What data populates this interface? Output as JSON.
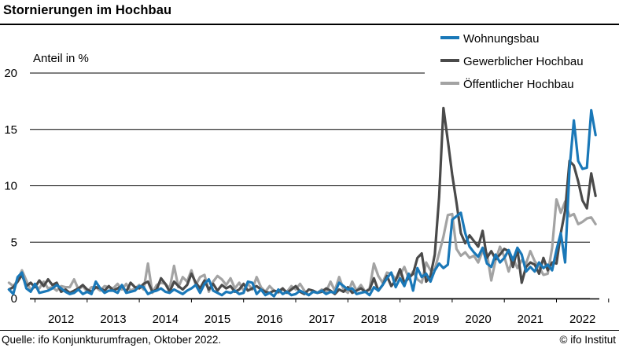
{
  "title": "Stornierungen im Hochbau",
  "footer": {
    "source": "Quelle: ifo Konjunkturumfragen, Oktober 2022.",
    "credit": "© ifo Institut"
  },
  "chart_data": {
    "type": "line",
    "title": "Stornierungen im Hochbau",
    "ylabel": "Anteil in %",
    "ylim": [
      0,
      20
    ],
    "yticks": [
      0,
      5,
      10,
      15,
      20
    ],
    "grid": "horizontal",
    "legend_position": "top-right",
    "x_start": "2011-07",
    "x_end": "2022-09",
    "x_frequency": "monthly",
    "xticks": [
      "2012",
      "2013",
      "2014",
      "2015",
      "2016",
      "2017",
      "2018",
      "2019",
      "2020",
      "2021",
      "2022"
    ],
    "series": [
      {
        "name": "Wohnungsbau",
        "color": "#1a78b8",
        "values": [
          0.8,
          0.4,
          1.9,
          2.3,
          0.9,
          0.6,
          1.3,
          0.5,
          0.6,
          0.7,
          0.9,
          1.2,
          0.9,
          0.6,
          0.4,
          0.5,
          0.8,
          0.4,
          0.6,
          0.4,
          1.5,
          0.9,
          0.5,
          0.7,
          0.7,
          0.5,
          1.2,
          0.5,
          0.6,
          0.7,
          1.1,
          1.0,
          0.4,
          0.6,
          0.7,
          0.9,
          0.6,
          0.5,
          0.8,
          0.6,
          0.4,
          0.7,
          0.9,
          1.2,
          0.5,
          1.3,
          1.7,
          0.7,
          0.5,
          0.3,
          0.6,
          0.5,
          0.7,
          0.4,
          0.5,
          1.5,
          1.4,
          0.4,
          0.8,
          0.3,
          0.5,
          0.2,
          0.8,
          0.4,
          0.6,
          0.3,
          0.4,
          0.7,
          0.5,
          0.3,
          0.6,
          0.5,
          0.7,
          0.4,
          0.6,
          0.5,
          1.4,
          1.1,
          0.8,
          0.9,
          0.4,
          0.5,
          0.6,
          0.3,
          1.0,
          0.7,
          1.2,
          1.8,
          2.3,
          1.0,
          1.8,
          1.1,
          2.2,
          0.7,
          2.7,
          1.9,
          2.2,
          1.5,
          2.5,
          3.1,
          2.7,
          3.0,
          7.0,
          7.3,
          7.6,
          5.8,
          4.6,
          4.1,
          3.7,
          4.5,
          3.1,
          2.8,
          3.9,
          3.2,
          3.6,
          4.3,
          3.4,
          4.5,
          3.9,
          2.4,
          2.8,
          2.4,
          3.2,
          2.7,
          3.0,
          2.5,
          4.3,
          5.8,
          3.2,
          11.5,
          15.8,
          12.2,
          11.5,
          11.6,
          16.7,
          14.5
        ]
      },
      {
        "name": "Gewerblicher Hochbau",
        "color": "#4a4a4a",
        "values": [
          0.8,
          1.0,
          1.5,
          2.1,
          1.1,
          1.4,
          1.0,
          1.6,
          1.1,
          1.7,
          1.2,
          1.4,
          0.6,
          0.8,
          0.5,
          0.7,
          0.9,
          1.2,
          0.8,
          0.6,
          1.0,
          0.9,
          0.7,
          1.1,
          0.7,
          0.9,
          1.1,
          0.6,
          1.4,
          1.0,
          0.9,
          1.3,
          1.5,
          0.6,
          0.8,
          1.8,
          1.3,
          0.6,
          1.5,
          1.1,
          0.8,
          1.2,
          2.2,
          1.4,
          0.9,
          1.6,
          0.8,
          1.3,
          0.7,
          1.2,
          0.9,
          1.1,
          0.6,
          0.8,
          1.3,
          0.7,
          0.9,
          1.1,
          0.8,
          0.6,
          0.5,
          0.7,
          0.6,
          0.9,
          0.5,
          0.8,
          1.1,
          0.6,
          0.4,
          0.8,
          0.7,
          0.5,
          0.6,
          0.9,
          0.7,
          0.4,
          0.8,
          0.6,
          1.0,
          0.5,
          0.7,
          0.9,
          0.6,
          0.8,
          1.8,
          0.7,
          1.2,
          2.0,
          1.1,
          1.6,
          2.6,
          1.4,
          1.8,
          2.2,
          3.6,
          4.0,
          1.5,
          2.0,
          3.9,
          9.0,
          16.9,
          14.0,
          11.0,
          8.5,
          5.8,
          4.9,
          5.6,
          5.1,
          4.6,
          6.0,
          3.6,
          4.2,
          3.5,
          3.9,
          4.4,
          4.2,
          2.8,
          4.4,
          1.4,
          2.8,
          3.2,
          3.0,
          2.2,
          3.6,
          2.5,
          3.2,
          3.1,
          5.8,
          7.8,
          12.2,
          11.8,
          10.4,
          8.7,
          8.0,
          11.1,
          9.1
        ]
      },
      {
        "name": "Öffentlicher Hochbau",
        "color": "#a3a3a3",
        "values": [
          1.4,
          1.1,
          1.6,
          2.5,
          1.6,
          0.7,
          1.1,
          0.9,
          1.5,
          0.9,
          1.0,
          0.7,
          1.1,
          1.0,
          1.0,
          1.7,
          0.8,
          1.1,
          0.6,
          1.0,
          1.0,
          0.7,
          1.1,
          1.0,
          0.9,
          1.3,
          0.8,
          1.3,
          0.7,
          0.9,
          1.2,
          0.8,
          3.1,
          0.5,
          1.2,
          1.4,
          1.3,
          0.9,
          2.9,
          1.0,
          1.9,
          1.5,
          2.5,
          1.2,
          1.9,
          2.1,
          0.6,
          1.5,
          2.0,
          1.7,
          1.2,
          1.8,
          0.9,
          1.4,
          0.7,
          1.3,
          0.8,
          1.9,
          1.0,
          0.6,
          1.1,
          0.7,
          0.5,
          0.8,
          0.6,
          1.1,
          0.8,
          1.3,
          0.7,
          0.3,
          0.6,
          0.5,
          0.8,
          0.6,
          1.5,
          0.7,
          1.9,
          0.8,
          0.5,
          1.5,
          0.7,
          1.2,
          0.6,
          0.9,
          3.1,
          2.0,
          1.4,
          2.3,
          2.2,
          1.7,
          2.1,
          2.8,
          1.8,
          2.4,
          1.7,
          1.4,
          3.2,
          2.5,
          2.6,
          4.0,
          5.5,
          7.4,
          7.5,
          4.4,
          3.8,
          4.1,
          3.6,
          3.8,
          3.2,
          4.2,
          4.0,
          1.6,
          3.4,
          4.6,
          3.7,
          2.4,
          3.6,
          2.7,
          3.4,
          3.1,
          4.2,
          3.3,
          2.8,
          2.1,
          2.2,
          4.5,
          8.8,
          7.6,
          8.6,
          7.3,
          7.5,
          6.6,
          6.8,
          7.1,
          7.2,
          6.6
        ]
      }
    ]
  }
}
